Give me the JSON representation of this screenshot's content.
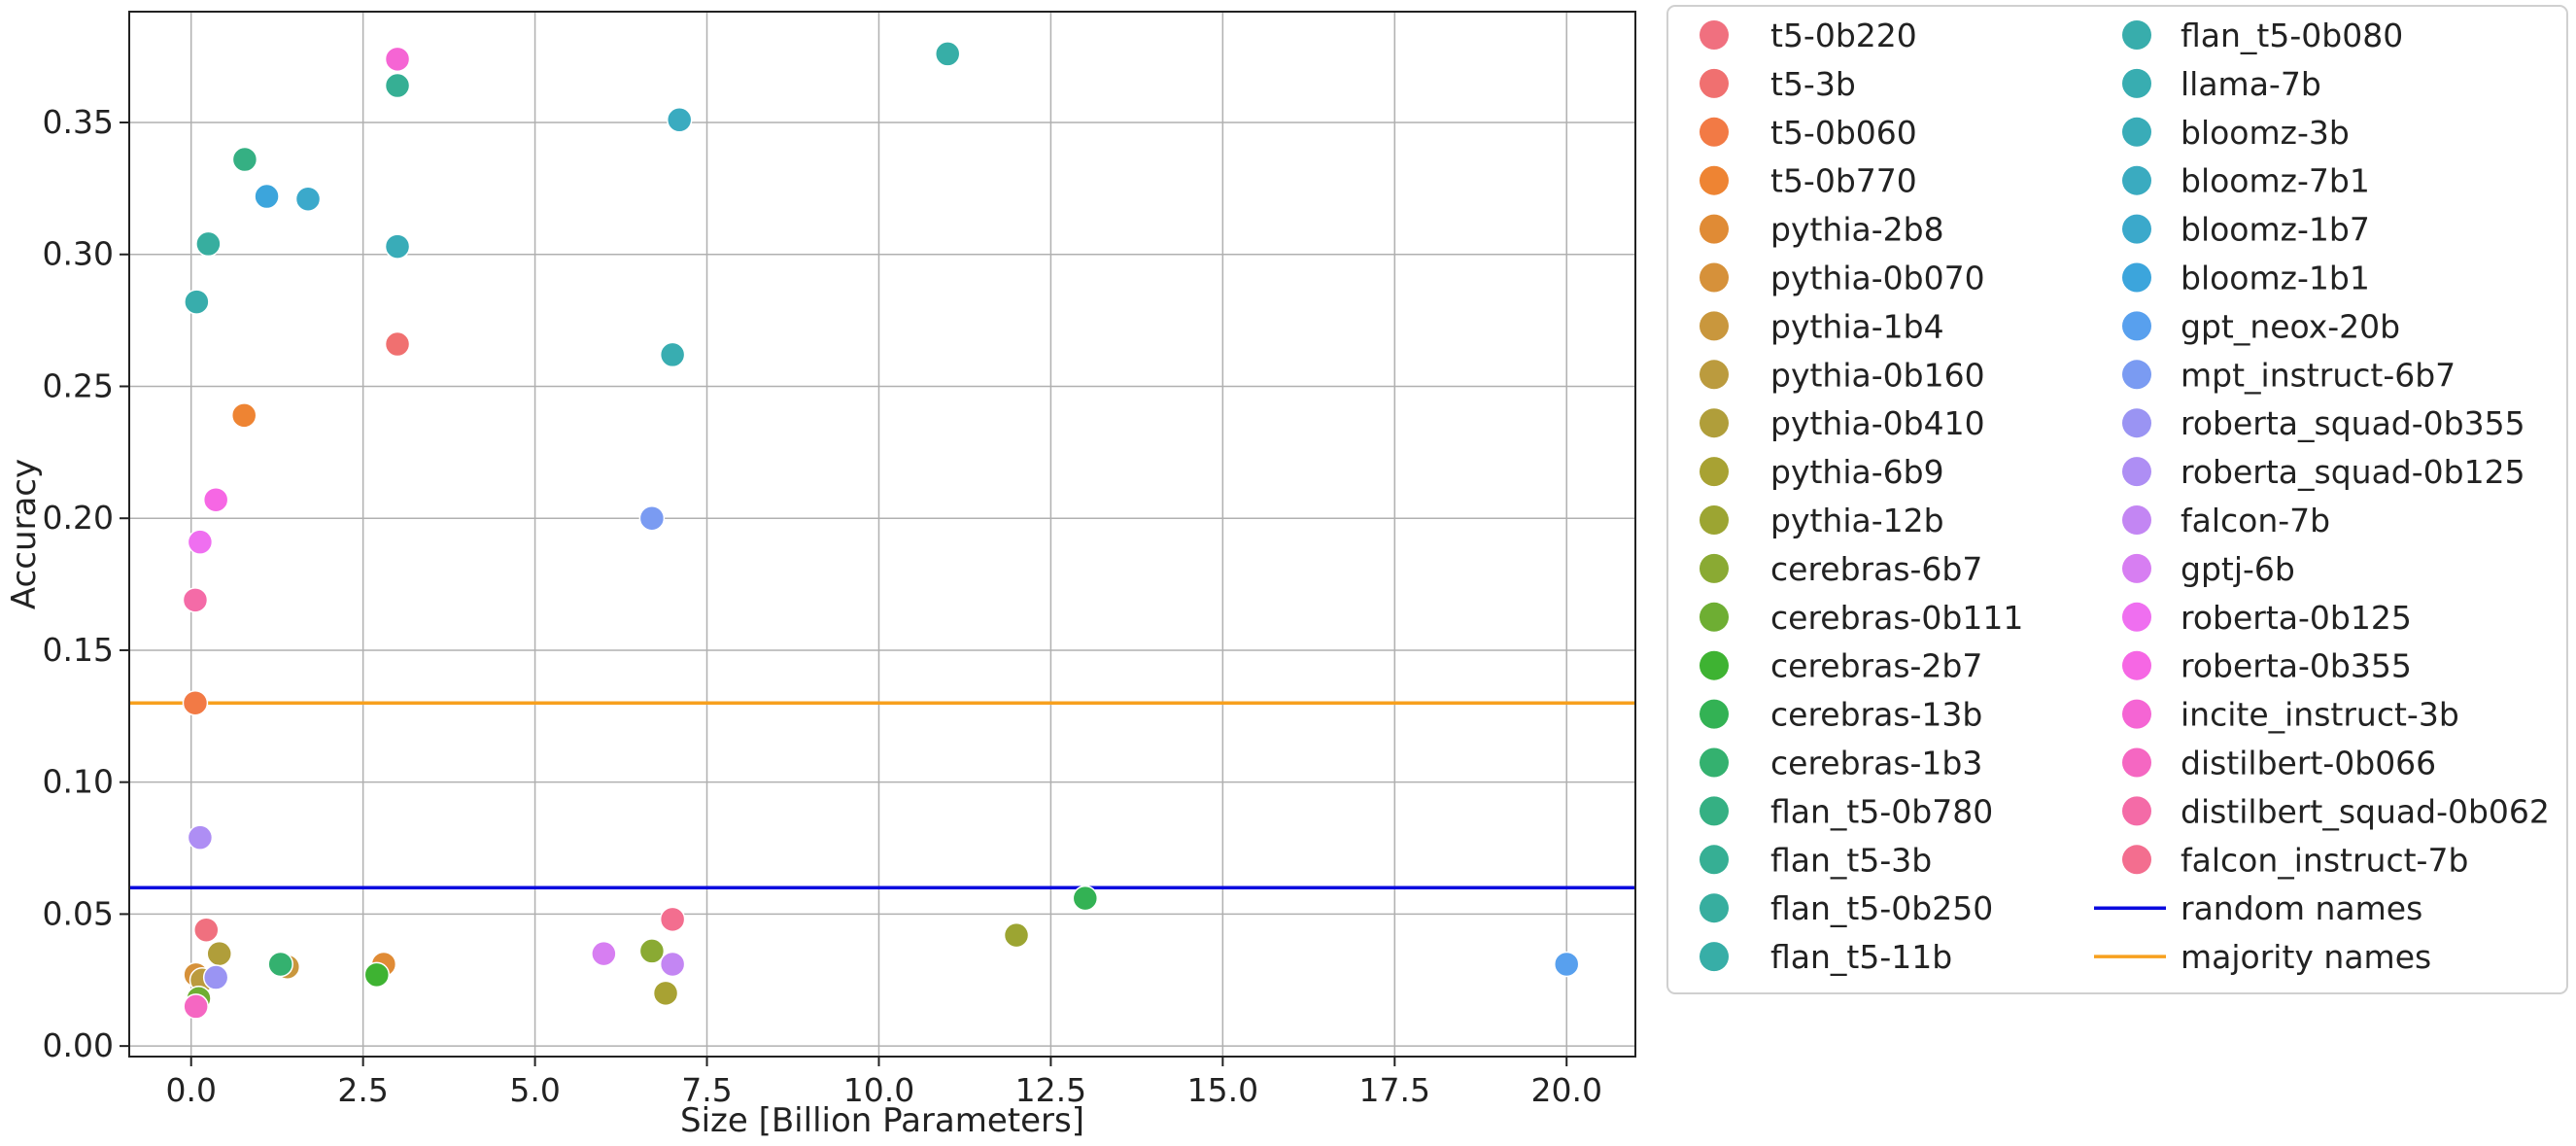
{
  "chart_data": {
    "type": "scatter",
    "title": "",
    "xlabel": "Size [Billion Parameters]",
    "ylabel": "Accuracy",
    "xlim": [
      -0.9,
      21.0
    ],
    "ylim": [
      -0.004,
      0.392
    ],
    "xticks": [
      0.0,
      2.5,
      5.0,
      7.5,
      10.0,
      12.5,
      15.0,
      17.5,
      20.0
    ],
    "xtick_labels": [
      "0.0",
      "2.5",
      "5.0",
      "7.5",
      "10.0",
      "12.5",
      "15.0",
      "17.5",
      "20.0"
    ],
    "yticks": [
      0.0,
      0.05,
      0.1,
      0.15,
      0.2,
      0.25,
      0.3,
      0.35
    ],
    "ytick_labels": [
      "0.00",
      "0.05",
      "0.10",
      "0.15",
      "0.20",
      "0.25",
      "0.30",
      "0.35"
    ],
    "grid": true,
    "legend_position": "outside-right",
    "series": [
      {
        "name": "t5-0b220",
        "color": "#f0707f",
        "x": 0.22,
        "y": 0.044
      },
      {
        "name": "t5-3b",
        "color": "#f07070",
        "x": 3.0,
        "y": 0.266
      },
      {
        "name": "t5-0b060",
        "color": "#f27a45",
        "x": 0.06,
        "y": 0.13
      },
      {
        "name": "t5-0b770",
        "color": "#ee8433",
        "x": 0.77,
        "y": 0.239
      },
      {
        "name": "pythia-2b8",
        "color": "#e08b35",
        "x": 2.8,
        "y": 0.031
      },
      {
        "name": "pythia-0b070",
        "color": "#d6913a",
        "x": 0.07,
        "y": 0.027
      },
      {
        "name": "pythia-1b4",
        "color": "#c9973d",
        "x": 1.4,
        "y": 0.03
      },
      {
        "name": "pythia-0b160",
        "color": "#bb9b3e",
        "x": 0.16,
        "y": 0.025
      },
      {
        "name": "pythia-0b410",
        "color": "#b09e3a",
        "x": 0.41,
        "y": 0.035
      },
      {
        "name": "pythia-6b9",
        "color": "#a8a233",
        "x": 6.9,
        "y": 0.02
      },
      {
        "name": "pythia-12b",
        "color": "#9ca532",
        "x": 12.0,
        "y": 0.042
      },
      {
        "name": "cerebras-6b7",
        "color": "#8aaa33",
        "x": 6.7,
        "y": 0.036
      },
      {
        "name": "cerebras-0b111",
        "color": "#6eae33",
        "x": 0.11,
        "y": 0.018
      },
      {
        "name": "cerebras-2b7",
        "color": "#3eb332",
        "x": 2.7,
        "y": 0.027
      },
      {
        "name": "cerebras-13b",
        "color": "#33b254",
        "x": 13.0,
        "y": 0.056
      },
      {
        "name": "cerebras-1b3",
        "color": "#34b16f",
        "x": 1.3,
        "y": 0.031
      },
      {
        "name": "flan_t5-0b780",
        "color": "#35b083",
        "x": 0.78,
        "y": 0.336
      },
      {
        "name": "flan_t5-3b",
        "color": "#36af94",
        "x": 3.0,
        "y": 0.364
      },
      {
        "name": "flan_t5-0b250",
        "color": "#37ae9f",
        "x": 0.25,
        "y": 0.304
      },
      {
        "name": "flan_t5-11b",
        "color": "#37aea7",
        "x": 11.0,
        "y": 0.376
      },
      {
        "name": "flan_t5-0b080",
        "color": "#38adac",
        "x": 0.08,
        "y": 0.282
      },
      {
        "name": "llama-7b",
        "color": "#38adb1",
        "x": 7.0,
        "y": 0.262
      },
      {
        "name": "bloomz-3b",
        "color": "#39acb8",
        "x": 3.0,
        "y": 0.303
      },
      {
        "name": "bloomz-7b1",
        "color": "#3aabc0",
        "x": 7.1,
        "y": 0.351
      },
      {
        "name": "bloomz-1b7",
        "color": "#3ba9cb",
        "x": 1.7,
        "y": 0.321
      },
      {
        "name": "bloomz-1b1",
        "color": "#3ca5dc",
        "x": 1.1,
        "y": 0.322
      },
      {
        "name": "gpt_neox-20b",
        "color": "#58a0ee",
        "x": 20.0,
        "y": 0.031
      },
      {
        "name": "mpt_instruct-6b7",
        "color": "#7a9bf2",
        "x": 6.7,
        "y": 0.2
      },
      {
        "name": "roberta_squad-0b355",
        "color": "#9a94f3",
        "x": 0.36,
        "y": 0.026
      },
      {
        "name": "roberta_squad-0b125",
        "color": "#ae8ef4",
        "x": 0.13,
        "y": 0.079
      },
      {
        "name": "falcon-7b",
        "color": "#c386f3",
        "x": 7.0,
        "y": 0.031
      },
      {
        "name": "gptj-6b",
        "color": "#d77ef2",
        "x": 6.0,
        "y": 0.035
      },
      {
        "name": "roberta-0b125",
        "color": "#ef6ff0",
        "x": 0.13,
        "y": 0.191
      },
      {
        "name": "roberta-0b355",
        "color": "#f667e4",
        "x": 0.36,
        "y": 0.207
      },
      {
        "name": "incite_instruct-3b",
        "color": "#f565d4",
        "x": 3.0,
        "y": 0.374
      },
      {
        "name": "distilbert-0b066",
        "color": "#f567c2",
        "x": 0.07,
        "y": 0.015
      },
      {
        "name": "distilbert_squad-0b062",
        "color": "#f46ba7",
        "x": 0.06,
        "y": 0.169
      },
      {
        "name": "falcon_instruct-7b",
        "color": "#f36e8f",
        "x": 7.0,
        "y": 0.048
      }
    ],
    "hlines": [
      {
        "name": "random names",
        "color": "#0a0adf",
        "y": 0.06
      },
      {
        "name": "majority names",
        "color": "#f7a01e",
        "y": 0.13
      }
    ]
  }
}
